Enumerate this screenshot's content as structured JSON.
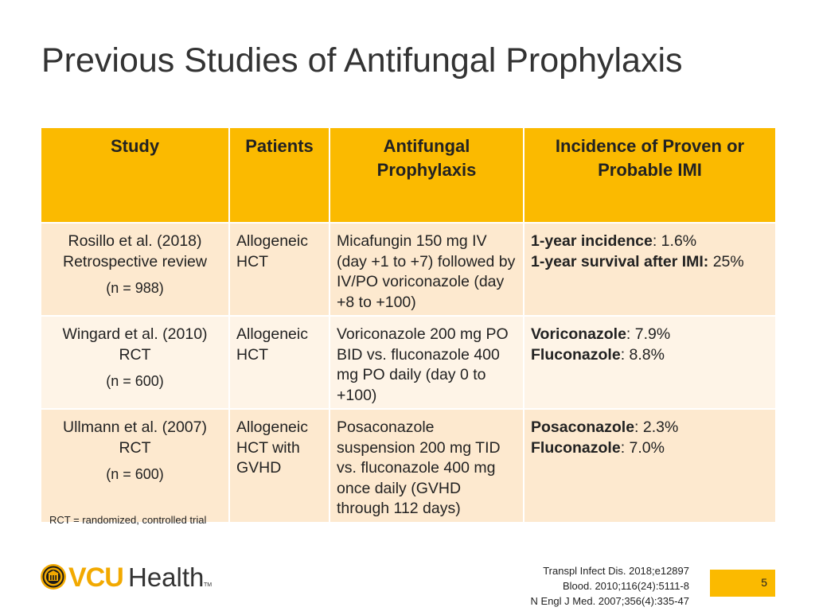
{
  "slide": {
    "title": "Previous Studies of Antifungal Prophylaxis",
    "page_number": "5"
  },
  "table": {
    "headers": [
      "Study",
      "Patients",
      "Antifungal Prophylaxis",
      "Incidence of Proven or Probable IMI"
    ],
    "rows": [
      {
        "study": "Rosillo et al. (2018)",
        "design": "Retrospective review",
        "n": "(n = 988)",
        "patients": "Allogeneic HCT",
        "prophylaxis": "Micafungin 150 mg IV (day +1 to +7) followed by IV/PO voriconazole (day +8 to +100)",
        "outcomes": [
          {
            "label": "1-year incidence",
            "value": ": 1.6%"
          },
          {
            "label": "1-year survival after IMI:",
            "value": " 25%"
          }
        ]
      },
      {
        "study": "Wingard et al. (2010)",
        "design": "RCT",
        "n": "(n = 600)",
        "patients": "Allogeneic HCT",
        "prophylaxis": "Voriconazole 200 mg PO BID vs. fluconazole 400 mg PO daily (day 0 to +100)",
        "outcomes": [
          {
            "label": "Voriconazole",
            "value": ": 7.9%"
          },
          {
            "label": "Fluconazole",
            "value": ": 8.8%"
          }
        ]
      },
      {
        "study": "Ullmann et al. (2007)",
        "design": "RCT",
        "n": "(n = 600)",
        "patients": "Allogeneic HCT with GVHD",
        "prophylaxis": "Posaconazole suspension 200 mg TID vs. fluconazole 400 mg once daily (GVHD through 112 days)",
        "outcomes": [
          {
            "label": "Posaconazole",
            "value": ": 2.3%"
          },
          {
            "label": "Fluconazole",
            "value": ": 7.0%"
          }
        ]
      }
    ]
  },
  "footnote": "RCT = randomized, controlled trial",
  "logo": {
    "vcu": "VCU",
    "health": "Health",
    "tm": "TM"
  },
  "references": [
    "Transpl Infect Dis. 2018;e12897",
    "Blood. 2010;116(24):5111-8",
    "N Engl J Med. 2007;356(4):335-47"
  ],
  "colors": {
    "header_gold": "#fbba00",
    "row_light": "#fde9cf",
    "row_lighter": "#fef4e7",
    "vcu_gold": "#f2a900"
  }
}
